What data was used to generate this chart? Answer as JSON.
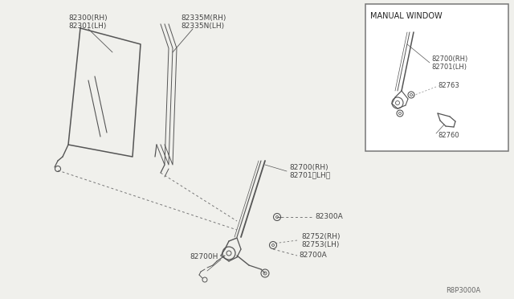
{
  "bg_color": "#f0f0ec",
  "line_color": "#555555",
  "text_color": "#444444",
  "border_color": "#777777",
  "fig_width": 6.4,
  "fig_height": 3.72,
  "diagram_code": "R8P3000A",
  "inset_title": "MANUAL WINDOW",
  "label_glass1": "82300(RH)",
  "label_glass2": "82301(LH)",
  "label_run1": "82335M(RH)",
  "label_run2": "82335N(LH)",
  "label_reg1": "82700(RH)",
  "label_reg2": "82701〈LH〉",
  "label_bolt1": "82300A",
  "label_bolt2a": "82752(RH)",
  "label_bolt2b": "82753(LH)",
  "label_hbase": "82700H",
  "label_bolt3": "82700A",
  "label_inset_reg1": "82700(RH)",
  "label_inset_reg2": "82701(LH)",
  "label_inset_brkt": "82763",
  "label_inset_hndl": "82760"
}
